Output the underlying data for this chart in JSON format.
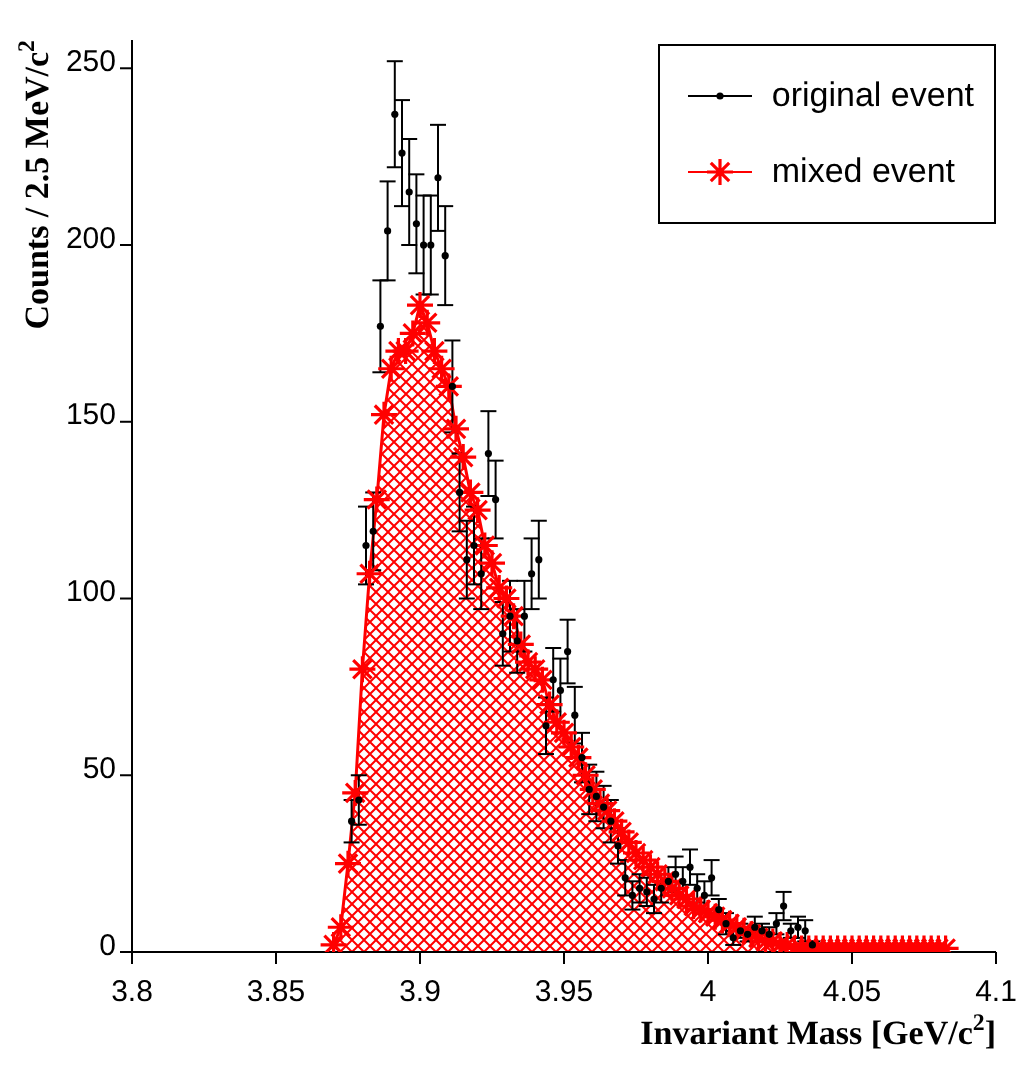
{
  "chart_data": {
    "type": "area",
    "xlabel": "Invariant Mass [GeV/c$^{2}$]",
    "ylabel": "Counts / 2.5 MeV/c$^{2}$",
    "xlim": [
      3.8,
      4.1
    ],
    "ylim": [
      0,
      258
    ],
    "xticks": [
      3.8,
      3.85,
      3.9,
      3.95,
      4,
      4.05,
      4.1
    ],
    "yticks": [
      0,
      50,
      100,
      150,
      200,
      250
    ],
    "legend": "top right",
    "series": [
      {
        "name": "original event",
        "type": "scatter",
        "marker": "circle",
        "color": "#000000",
        "x": [
          3.87625,
          3.87875,
          3.88125,
          3.88375,
          3.88625,
          3.88875,
          3.89125,
          3.89375,
          3.89625,
          3.89875,
          3.90125,
          3.90375,
          3.90625,
          3.90875,
          3.91125,
          3.91375,
          3.91625,
          3.91875,
          3.92125,
          3.92375,
          3.92625,
          3.92875,
          3.93125,
          3.93375,
          3.93625,
          3.93875,
          3.94125,
          3.94375,
          3.94625,
          3.94875,
          3.95125,
          3.95375,
          3.95625,
          3.95875,
          3.96125,
          3.96375,
          3.96625,
          3.96875,
          3.97125,
          3.97375,
          3.97625,
          3.97875,
          3.98125,
          3.98375,
          3.98625,
          3.98875,
          3.99125,
          3.99375,
          3.99625,
          3.99875,
          4.00125,
          4.00375,
          4.00625,
          4.00875,
          4.01125,
          4.01375,
          4.01625,
          4.01875,
          4.02125,
          4.02375,
          4.02625,
          4.02875,
          4.03125,
          4.03375,
          4.03625
        ],
        "values": [
          37,
          43,
          115,
          119,
          177,
          204,
          237,
          226,
          215,
          206,
          200,
          200,
          219,
          197,
          160,
          130,
          111,
          115,
          107,
          141,
          128,
          90,
          95,
          88,
          95,
          107,
          111,
          64,
          77,
          74,
          85,
          67,
          55,
          46,
          44,
          41,
          37,
          30,
          21,
          16,
          18,
          17,
          15,
          18,
          20,
          22,
          20,
          24,
          18,
          16,
          21,
          12,
          8,
          4,
          6,
          5,
          7,
          6,
          5,
          8,
          13,
          6,
          7,
          6,
          2
        ],
        "errors": [
          6,
          7,
          11,
          11,
          13,
          14,
          15,
          15,
          15,
          14,
          14,
          14,
          15,
          14,
          13,
          11,
          11,
          11,
          10,
          12,
          11,
          9,
          10,
          9,
          10,
          10,
          11,
          8,
          9,
          9,
          9,
          8,
          7,
          7,
          7,
          6,
          6,
          5,
          5,
          4,
          4,
          4,
          4,
          4,
          4,
          5,
          4,
          5,
          4,
          4,
          5,
          3,
          3,
          2,
          2,
          2,
          3,
          2,
          2,
          3,
          4,
          2,
          3,
          3,
          1
        ]
      },
      {
        "name": "mixed event",
        "marker": "cross",
        "color": "#ff0000",
        "x": [
          3.87,
          3.8725,
          3.875,
          3.8775,
          3.88,
          3.8825,
          3.885,
          3.8875,
          3.89,
          3.8925,
          3.895,
          3.8975,
          3.9,
          3.9025,
          3.905,
          3.9075,
          3.91,
          3.9125,
          3.915,
          3.9175,
          3.92,
          3.9225,
          3.925,
          3.9275,
          3.93,
          3.9325,
          3.935,
          3.9375,
          3.94,
          3.9425,
          3.945,
          3.9475,
          3.95,
          3.9525,
          3.955,
          3.9575,
          3.96,
          3.9625,
          3.965,
          3.9675,
          3.97,
          3.9725,
          3.975,
          3.9775,
          3.98,
          3.9825,
          3.985,
          3.9875,
          3.99,
          3.9925,
          3.995,
          3.9975,
          4.0,
          4.0025,
          4.005,
          4.0075,
          4.01,
          4.0125,
          4.015,
          4.0175,
          4.02,
          4.0225,
          4.025,
          4.0275,
          4.03,
          4.0325,
          4.035,
          4.0375,
          4.04,
          4.0425,
          4.045,
          4.0475,
          4.05,
          4.0525,
          4.055,
          4.0575,
          4.06,
          4.0625,
          4.065,
          4.0675,
          4.07,
          4.0725,
          4.075,
          4.0775,
          4.08,
          4.0825
        ],
        "values": [
          2,
          7,
          25,
          45,
          80,
          107,
          128,
          152,
          165,
          170,
          170,
          175,
          183,
          178,
          170,
          165,
          160,
          148,
          140,
          130,
          125,
          115,
          110,
          103,
          100,
          95,
          87,
          82,
          80,
          77,
          70,
          65,
          62,
          58,
          55,
          50,
          46,
          42,
          40,
          37,
          34,
          31,
          28,
          26,
          24,
          22,
          20,
          18,
          16,
          15,
          13,
          12,
          11,
          10,
          9,
          8,
          7,
          6,
          5,
          4,
          3,
          3,
          2,
          2,
          1,
          1,
          1,
          1,
          1,
          1,
          1,
          1,
          1,
          1,
          1,
          1,
          1,
          1,
          1,
          1,
          1,
          1,
          1,
          1,
          1,
          1
        ]
      }
    ]
  }
}
